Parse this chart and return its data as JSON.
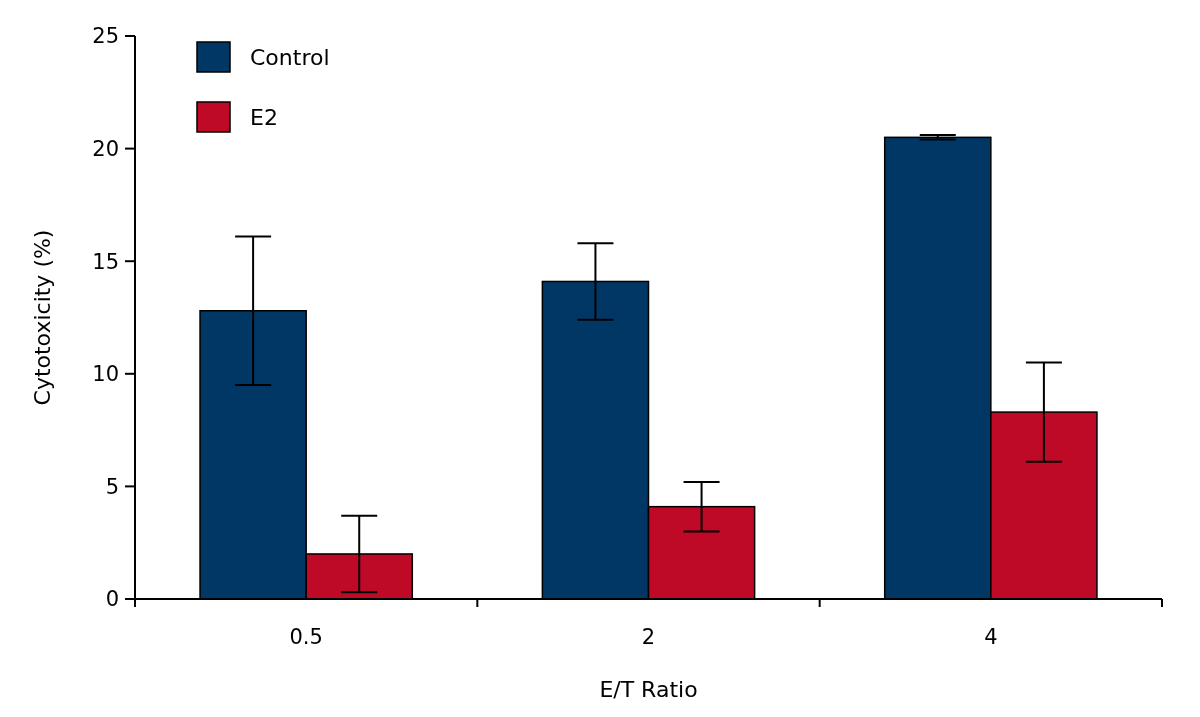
{
  "chart_data": {
    "type": "bar",
    "xlabel": "E/T Ratio",
    "ylabel": "Cytotoxicity (%)",
    "categories": [
      "0.5",
      "2",
      "4"
    ],
    "series": [
      {
        "name": "Control",
        "color": "#003764",
        "values": [
          12.8,
          14.1,
          20.5
        ],
        "errors": [
          3.3,
          1.7,
          0.1
        ]
      },
      {
        "name": "E2",
        "color": "#be0a26",
        "values": [
          2.0,
          4.1,
          8.3
        ],
        "errors": [
          1.7,
          1.1,
          2.2
        ]
      }
    ],
    "ylim": [
      0,
      25
    ],
    "yticks": [
      0,
      5,
      10,
      15,
      20,
      25
    ],
    "grid": false,
    "legend": "top left"
  }
}
